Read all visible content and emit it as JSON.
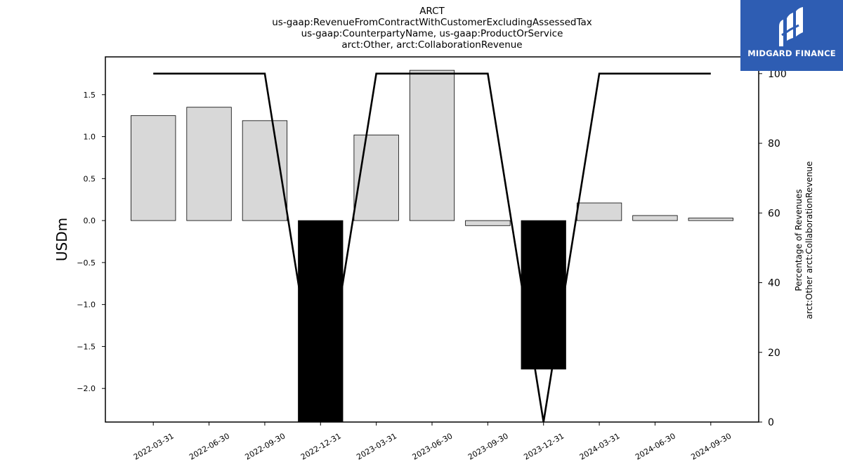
{
  "chart_data": {
    "type": "bar",
    "title_lines": [
      "ARCT",
      "us-gaap:RevenueFromContractWithCustomerExcludingAssessedTax",
      "us-gaap:CounterpartyName, us-gaap:ProductOrService",
      "arct:Other, arct:CollaborationRevenue"
    ],
    "categories": [
      "2022-03-31",
      "2022-06-30",
      "2022-09-30",
      "2022-12-31",
      "2023-03-31",
      "2023-06-30",
      "2023-09-30",
      "2023-12-31",
      "2024-03-31",
      "2024-06-30",
      "2024-09-30"
    ],
    "series": [
      {
        "type": "bar",
        "axis": "left",
        "values": [
          1.25,
          1.35,
          1.19,
          -2.45,
          1.02,
          1.79,
          -0.06,
          -1.77,
          0.21,
          0.06,
          0.03
        ],
        "colors": [
          "#d8d8d8",
          "#d8d8d8",
          "#d8d8d8",
          "#000000",
          "#d8d8d8",
          "#d8d8d8",
          "#d8d8d8",
          "#000000",
          "#d8d8d8",
          "#d8d8d8",
          "#d8d8d8"
        ]
      },
      {
        "type": "line",
        "axis": "right",
        "values": [
          100,
          100,
          100,
          0,
          100,
          100,
          100,
          0,
          100,
          100,
          100
        ],
        "color": "#000000"
      }
    ],
    "ylabel": "USDm",
    "ylim": [
      -2.4,
      1.95
    ],
    "yticks": [
      -2.0,
      -1.5,
      -1.0,
      -0.5,
      0.0,
      0.5,
      1.0,
      1.5
    ],
    "ytick_labels": [
      "−2.0",
      "−1.5",
      "−1.0",
      "−0.5",
      "0.0",
      "0.5",
      "1.0",
      "1.5"
    ],
    "y2label_lines": [
      "Percentage of Revenues",
      "arct:Other arct:CollaborationRevenue"
    ],
    "y2lim": [
      0,
      104.8
    ],
    "y2ticks": [
      0,
      20,
      40,
      60,
      80,
      100
    ],
    "y2tick_labels": [
      "0",
      "20",
      "40",
      "60",
      "80",
      "100"
    ],
    "grid": false
  },
  "logo": {
    "text": "MIDGARD FINANCE",
    "background": "#2e5db3"
  }
}
